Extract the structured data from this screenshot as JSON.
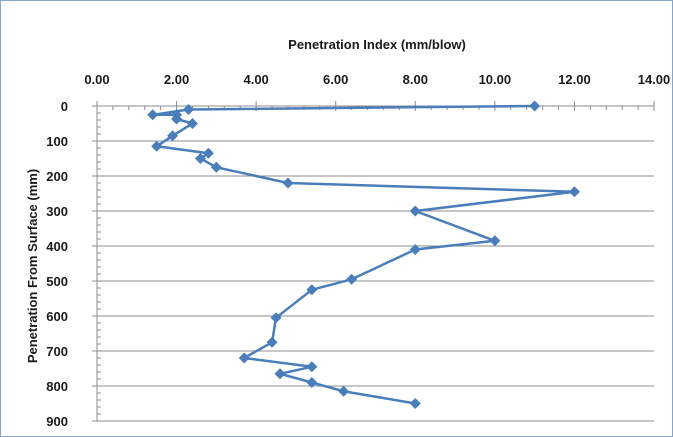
{
  "chart_data": {
    "type": "line",
    "title": "",
    "xlabel": "Penetration Index (mm/blow)",
    "ylabel": "Penetration From Surface (mm)",
    "x_axis_position": "top",
    "y_axis_inverted": true,
    "xlim": [
      0,
      14
    ],
    "ylim": [
      0,
      900
    ],
    "x_ticks": [
      "0.00",
      "2.00",
      "4.00",
      "6.00",
      "8.00",
      "10.00",
      "12.00",
      "14.00"
    ],
    "x_tick_values": [
      0,
      2,
      4,
      6,
      8,
      10,
      12,
      14
    ],
    "y_ticks": [
      "0",
      "100",
      "200",
      "300",
      "400",
      "500",
      "600",
      "700",
      "800",
      "900"
    ],
    "y_tick_values": [
      0,
      100,
      200,
      300,
      400,
      500,
      600,
      700,
      800,
      900
    ],
    "grid": "horizontal",
    "legend": "none",
    "series": [
      {
        "color": "#4a7ebb",
        "marker": "diamond",
        "points": [
          {
            "x": 11.0,
            "y": 0
          },
          {
            "x": 2.3,
            "y": 10
          },
          {
            "x": 1.4,
            "y": 25
          },
          {
            "x": 2.0,
            "y": 25
          },
          {
            "x": 2.0,
            "y": 37
          },
          {
            "x": 2.4,
            "y": 50
          },
          {
            "x": 1.9,
            "y": 85
          },
          {
            "x": 1.5,
            "y": 115
          },
          {
            "x": 2.8,
            "y": 135
          },
          {
            "x": 2.6,
            "y": 150
          },
          {
            "x": 3.0,
            "y": 175
          },
          {
            "x": 4.8,
            "y": 220
          },
          {
            "x": 12.0,
            "y": 245
          },
          {
            "x": 8.0,
            "y": 300
          },
          {
            "x": 10.0,
            "y": 385
          },
          {
            "x": 8.0,
            "y": 410
          },
          {
            "x": 6.4,
            "y": 495
          },
          {
            "x": 5.4,
            "y": 525
          },
          {
            "x": 4.5,
            "y": 605
          },
          {
            "x": 4.4,
            "y": 675
          },
          {
            "x": 3.7,
            "y": 720
          },
          {
            "x": 5.4,
            "y": 745
          },
          {
            "x": 4.6,
            "y": 765
          },
          {
            "x": 5.4,
            "y": 790
          },
          {
            "x": 6.2,
            "y": 815
          },
          {
            "x": 8.0,
            "y": 850
          }
        ]
      }
    ]
  }
}
